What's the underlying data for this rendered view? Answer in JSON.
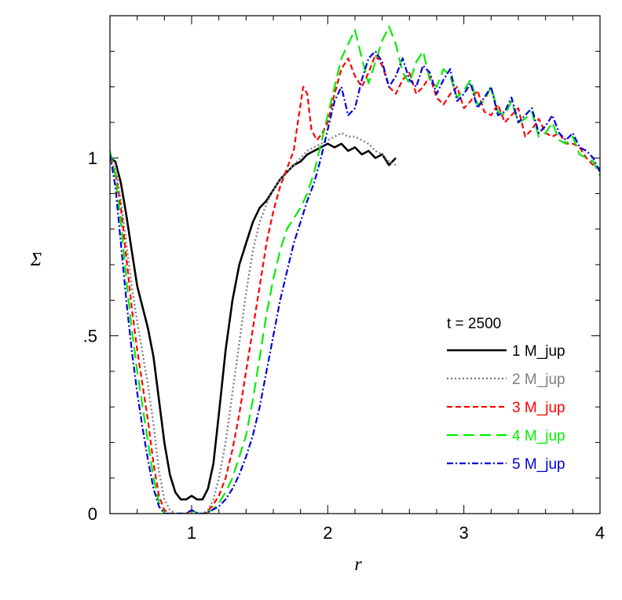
{
  "chart_data": {
    "type": "line",
    "xlabel": "r",
    "ylabel": "Σ",
    "xlim": [
      0.4,
      4.0
    ],
    "ylim": [
      0,
      1.4
    ],
    "x_ticks": [
      {
        "value": 1,
        "label": "1"
      },
      {
        "value": 2,
        "label": "2"
      },
      {
        "value": 3,
        "label": "3"
      },
      {
        "value": 4,
        "label": "4"
      }
    ],
    "y_ticks": [
      {
        "value": 0,
        "label": "0"
      },
      {
        "value": 0.5,
        "label": ".5"
      },
      {
        "value": 1,
        "label": "1"
      }
    ],
    "x_minor_step": 0.2,
    "y_minor_step": 0.1,
    "grid": false,
    "legend_title": "t = 2500",
    "legend_position": "right",
    "series": [
      {
        "name": "1 M_jup",
        "color": "#000000",
        "dash": "solid",
        "x": [
          0.4,
          0.44,
          0.48,
          0.52,
          0.56,
          0.6,
          0.64,
          0.68,
          0.72,
          0.76,
          0.8,
          0.84,
          0.88,
          0.92,
          0.96,
          1.0,
          1.04,
          1.08,
          1.12,
          1.16,
          1.2,
          1.25,
          1.3,
          1.35,
          1.4,
          1.45,
          1.5,
          1.55,
          1.6,
          1.65,
          1.7,
          1.75,
          1.8,
          1.85,
          1.9,
          1.95,
          2.0,
          2.05,
          2.1,
          2.15,
          2.2,
          2.25,
          2.3,
          2.35,
          2.4,
          2.45,
          2.5
        ],
        "y": [
          1.0,
          0.99,
          0.93,
          0.84,
          0.74,
          0.64,
          0.58,
          0.52,
          0.44,
          0.32,
          0.2,
          0.11,
          0.06,
          0.04,
          0.04,
          0.05,
          0.04,
          0.04,
          0.07,
          0.14,
          0.28,
          0.46,
          0.6,
          0.7,
          0.76,
          0.82,
          0.86,
          0.88,
          0.91,
          0.94,
          0.96,
          0.98,
          0.99,
          1.01,
          1.02,
          1.03,
          1.04,
          1.03,
          1.04,
          1.02,
          1.03,
          1.01,
          1.02,
          1.0,
          1.01,
          0.98,
          1.0
        ]
      },
      {
        "name": "2 M_jup",
        "color": "#808080",
        "dash": "dotted",
        "x": [
          0.4,
          0.44,
          0.48,
          0.52,
          0.56,
          0.6,
          0.64,
          0.68,
          0.72,
          0.76,
          0.8,
          0.84,
          0.88,
          0.92,
          0.96,
          1.0,
          1.04,
          1.08,
          1.12,
          1.16,
          1.2,
          1.25,
          1.3,
          1.35,
          1.4,
          1.45,
          1.5,
          1.55,
          1.6,
          1.65,
          1.7,
          1.75,
          1.8,
          1.85,
          1.9,
          1.95,
          2.0,
          2.05,
          2.1,
          2.15,
          2.2,
          2.25,
          2.3,
          2.35,
          2.4,
          2.45,
          2.5
        ],
        "y": [
          1.0,
          0.98,
          0.88,
          0.76,
          0.64,
          0.54,
          0.45,
          0.36,
          0.25,
          0.12,
          0.04,
          0.01,
          0.0,
          0.0,
          0.0,
          0.01,
          0.0,
          0.0,
          0.01,
          0.04,
          0.1,
          0.2,
          0.34,
          0.48,
          0.62,
          0.74,
          0.82,
          0.87,
          0.91,
          0.94,
          0.96,
          0.98,
          1.0,
          1.02,
          1.03,
          1.04,
          1.05,
          1.06,
          1.07,
          1.06,
          1.06,
          1.05,
          1.04,
          1.02,
          1.01,
          0.99,
          0.98
        ]
      },
      {
        "name": "3 M_jup",
        "color": "#ff0000",
        "dash": "dashed",
        "x": [
          0.4,
          0.44,
          0.48,
          0.52,
          0.56,
          0.6,
          0.64,
          0.68,
          0.72,
          0.76,
          0.8,
          0.84,
          0.88,
          0.92,
          0.96,
          1.0,
          1.05,
          1.1,
          1.15,
          1.2,
          1.25,
          1.3,
          1.35,
          1.4,
          1.45,
          1.5,
          1.55,
          1.6,
          1.65,
          1.7,
          1.75,
          1.78,
          1.82,
          1.85,
          1.88,
          1.92,
          1.96,
          2.0,
          2.05,
          2.1,
          2.15,
          2.2,
          2.25,
          2.3,
          2.35,
          2.4,
          2.45,
          2.5,
          2.55,
          2.6,
          2.65,
          2.7,
          2.75,
          2.8,
          2.85,
          2.9,
          2.95,
          3.0,
          3.05,
          3.1,
          3.15,
          3.2,
          3.25,
          3.3,
          3.35,
          3.4,
          3.45,
          3.5,
          3.55,
          3.6,
          3.65,
          3.7,
          3.75,
          3.8,
          3.85,
          3.9,
          3.95,
          4.0
        ],
        "y": [
          1.0,
          0.96,
          0.86,
          0.72,
          0.58,
          0.46,
          0.36,
          0.26,
          0.14,
          0.05,
          0.01,
          0.0,
          0.0,
          0.0,
          0.0,
          0.01,
          0.0,
          0.0,
          0.02,
          0.05,
          0.1,
          0.18,
          0.28,
          0.4,
          0.52,
          0.64,
          0.76,
          0.85,
          0.92,
          0.97,
          1.02,
          1.1,
          1.2,
          1.18,
          1.08,
          1.05,
          1.07,
          1.1,
          1.18,
          1.25,
          1.28,
          1.23,
          1.2,
          1.24,
          1.29,
          1.26,
          1.2,
          1.18,
          1.22,
          1.24,
          1.18,
          1.2,
          1.23,
          1.17,
          1.15,
          1.18,
          1.2,
          1.14,
          1.16,
          1.19,
          1.13,
          1.12,
          1.15,
          1.1,
          1.12,
          1.14,
          1.06,
          1.08,
          1.11,
          1.07,
          1.06,
          1.07,
          1.04,
          1.04,
          1.03,
          1.0,
          0.98,
          0.97
        ]
      },
      {
        "name": "4 M_jup",
        "color": "#00ee00",
        "dash": "longdash",
        "x": [
          0.4,
          0.44,
          0.48,
          0.52,
          0.56,
          0.6,
          0.64,
          0.68,
          0.72,
          0.76,
          0.8,
          0.84,
          0.88,
          0.92,
          0.96,
          1.0,
          1.05,
          1.1,
          1.15,
          1.2,
          1.25,
          1.3,
          1.35,
          1.4,
          1.45,
          1.5,
          1.55,
          1.6,
          1.65,
          1.7,
          1.75,
          1.8,
          1.85,
          1.9,
          1.95,
          2.0,
          2.05,
          2.1,
          2.15,
          2.2,
          2.25,
          2.3,
          2.35,
          2.4,
          2.45,
          2.5,
          2.55,
          2.6,
          2.65,
          2.7,
          2.75,
          2.8,
          2.85,
          2.9,
          2.95,
          3.0,
          3.05,
          3.1,
          3.15,
          3.2,
          3.25,
          3.3,
          3.35,
          3.4,
          3.45,
          3.5,
          3.55,
          3.6,
          3.65,
          3.7,
          3.75,
          3.8,
          3.85,
          3.9,
          3.95,
          4.0
        ],
        "y": [
          1.02,
          0.95,
          0.82,
          0.66,
          0.52,
          0.4,
          0.3,
          0.2,
          0.1,
          0.03,
          0.0,
          0.0,
          0.0,
          0.0,
          0.0,
          0.01,
          0.0,
          0.0,
          0.01,
          0.03,
          0.06,
          0.1,
          0.16,
          0.22,
          0.32,
          0.44,
          0.56,
          0.66,
          0.74,
          0.8,
          0.83,
          0.86,
          0.9,
          0.96,
          1.04,
          1.12,
          1.2,
          1.28,
          1.32,
          1.36,
          1.28,
          1.21,
          1.27,
          1.33,
          1.37,
          1.32,
          1.24,
          1.21,
          1.27,
          1.3,
          1.22,
          1.2,
          1.25,
          1.23,
          1.17,
          1.19,
          1.22,
          1.15,
          1.16,
          1.2,
          1.13,
          1.12,
          1.16,
          1.1,
          1.11,
          1.13,
          1.06,
          1.07,
          1.1,
          1.05,
          1.04,
          1.06,
          1.01,
          1.0,
          0.99,
          0.95
        ]
      },
      {
        "name": "5 M_jup",
        "color": "#0000dd",
        "dash": "dashdot",
        "x": [
          0.4,
          0.44,
          0.48,
          0.52,
          0.56,
          0.6,
          0.64,
          0.68,
          0.72,
          0.76,
          0.8,
          0.84,
          0.88,
          0.92,
          0.96,
          1.0,
          1.05,
          1.1,
          1.15,
          1.2,
          1.25,
          1.3,
          1.35,
          1.4,
          1.45,
          1.5,
          1.55,
          1.6,
          1.65,
          1.7,
          1.75,
          1.8,
          1.85,
          1.9,
          1.95,
          2.0,
          2.05,
          2.1,
          2.15,
          2.2,
          2.25,
          2.3,
          2.35,
          2.4,
          2.45,
          2.5,
          2.55,
          2.6,
          2.65,
          2.7,
          2.75,
          2.8,
          2.85,
          2.9,
          2.95,
          3.0,
          3.05,
          3.1,
          3.15,
          3.2,
          3.25,
          3.3,
          3.35,
          3.4,
          3.45,
          3.5,
          3.55,
          3.6,
          3.65,
          3.7,
          3.75,
          3.8,
          3.85,
          3.9,
          3.95,
          4.0
        ],
        "y": [
          1.01,
          0.92,
          0.76,
          0.6,
          0.46,
          0.34,
          0.24,
          0.15,
          0.07,
          0.02,
          0.0,
          0.0,
          0.0,
          0.0,
          0.0,
          0.01,
          0.0,
          0.0,
          0.01,
          0.02,
          0.04,
          0.07,
          0.11,
          0.16,
          0.22,
          0.3,
          0.4,
          0.5,
          0.6,
          0.68,
          0.76,
          0.82,
          0.88,
          0.93,
          1.0,
          1.08,
          1.16,
          1.2,
          1.12,
          1.14,
          1.22,
          1.28,
          1.3,
          1.27,
          1.2,
          1.23,
          1.28,
          1.22,
          1.2,
          1.26,
          1.24,
          1.18,
          1.22,
          1.25,
          1.16,
          1.18,
          1.21,
          1.14,
          1.17,
          1.2,
          1.12,
          1.13,
          1.17,
          1.1,
          1.12,
          1.14,
          1.07,
          1.09,
          1.12,
          1.07,
          1.05,
          1.07,
          1.03,
          1.02,
          1.0,
          0.96
        ]
      }
    ]
  }
}
